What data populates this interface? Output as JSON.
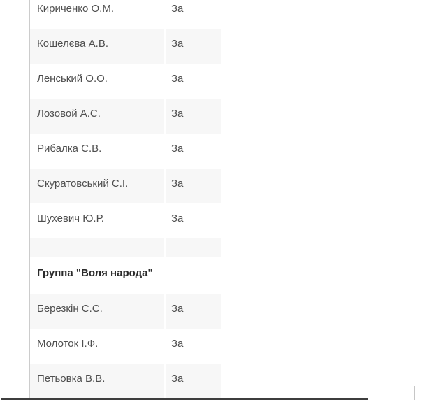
{
  "page": {
    "background": "#ffffff",
    "row_shade_color": "#f7f7f7",
    "text_color": "#4f4f4f",
    "footer_bar_color": "#3e3e3e"
  },
  "vote_table": {
    "columns": [
      "name",
      "vote"
    ],
    "rows": [
      {
        "type": "member",
        "name": "Кириченко О.М.",
        "vote": "За",
        "shaded": false
      },
      {
        "type": "member",
        "name": "Кошелєва А.В.",
        "vote": "За",
        "shaded": true
      },
      {
        "type": "member",
        "name": "Ленський О.О.",
        "vote": "За",
        "shaded": false
      },
      {
        "type": "member",
        "name": "Лозовой А.С.",
        "vote": "За",
        "shaded": true
      },
      {
        "type": "member",
        "name": "Рибалка С.В.",
        "vote": "За",
        "shaded": false
      },
      {
        "type": "member",
        "name": "Скуратовський С.І.",
        "vote": "За",
        "shaded": true
      },
      {
        "type": "member",
        "name": "Шухевич Ю.Р.",
        "vote": "За",
        "shaded": false
      },
      {
        "type": "spacer",
        "name": "",
        "vote": "",
        "shaded": true
      },
      {
        "type": "group-header",
        "group_label": "Группа \"Воля народа\""
      },
      {
        "type": "member",
        "name": "Березкін С.С.",
        "vote": "За",
        "shaded": true
      },
      {
        "type": "member",
        "name": "Молоток І.Ф.",
        "vote": "За",
        "shaded": false
      },
      {
        "type": "member",
        "name": "Петьовка В.В.",
        "vote": "За",
        "shaded": true
      }
    ]
  }
}
